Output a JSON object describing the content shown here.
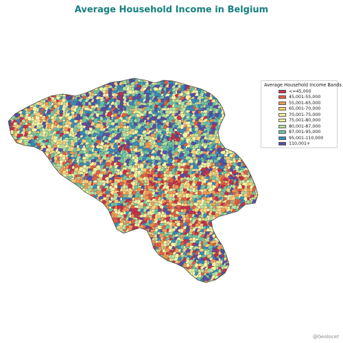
{
  "title": "Average Household Income in Belgium",
  "colors": {
    "title": "#16807f",
    "country_fill": "#c7b26a",
    "country_outline": "#444444"
  },
  "legend": {
    "title": "Average Household Income Bands",
    "placement": "right",
    "bands": [
      {
        "label": "<=45,000",
        "color": "#c9304a"
      },
      {
        "label": "45,001-55,000",
        "color": "#e35e43"
      },
      {
        "label": "55,001-65,000",
        "color": "#f29a56"
      },
      {
        "label": "65,001-70,000",
        "color": "#fbd07b"
      },
      {
        "label": "70,001-75,000",
        "color": "#fdf3a8"
      },
      {
        "label": "75,001-80,000",
        "color": "#eef6a3"
      },
      {
        "label": "80,001-87,000",
        "color": "#b6e1a0"
      },
      {
        "label": "87,001-95,000",
        "color": "#6fc3a4"
      },
      {
        "label": "95,001-110,000",
        "color": "#3a8bbc"
      },
      {
        "label": "110,001+",
        "color": "#5a4ea4"
      }
    ]
  },
  "credit": "@Geolocet"
}
